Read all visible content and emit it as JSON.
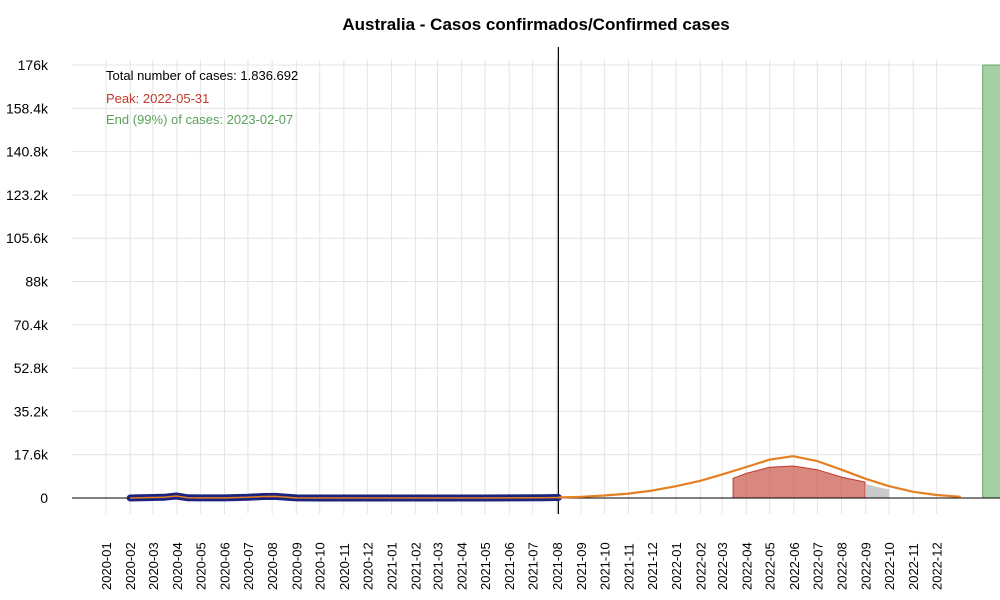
{
  "chart_data": {
    "type": "line",
    "title": "Australia - Casos confirmados/Confirmed cases",
    "xlabel": "",
    "ylabel": "",
    "ylim": [
      0,
      176000
    ],
    "yticks": [
      {
        "value": 0,
        "label": "0"
      },
      {
        "value": 17600,
        "label": "17.6k"
      },
      {
        "value": 35200,
        "label": "35.2k"
      },
      {
        "value": 52800,
        "label": "52.8k"
      },
      {
        "value": 70400,
        "label": "70.4k"
      },
      {
        "value": 88000,
        "label": "88k"
      },
      {
        "value": 105600,
        "label": "105.6k"
      },
      {
        "value": 123200,
        "label": "123.2k"
      },
      {
        "value": 140800,
        "label": "140.8k"
      },
      {
        "value": 158400,
        "label": "158.4k"
      },
      {
        "value": 176000,
        "label": "176k"
      }
    ],
    "xticks": [
      "2020-01",
      "2020-02",
      "2020-03",
      "2020-04",
      "2020-05",
      "2020-06",
      "2020-07",
      "2020-08",
      "2020-09",
      "2020-10",
      "2020-11",
      "2020-12",
      "2021-01",
      "2021-02",
      "2021-03",
      "2021-04",
      "2021-05",
      "2021-06",
      "2021-07",
      "2021-08",
      "2021-09",
      "2021-10",
      "2021-11",
      "2021-12",
      "2022-01",
      "2022-02",
      "2022-03",
      "2022-04",
      "2022-05",
      "2022-06",
      "2022-07",
      "2022-08",
      "2022-09",
      "2022-10",
      "2022-11",
      "2022-12"
    ],
    "x_domain": [
      "2020-01",
      "2023-02"
    ],
    "today_marker": "2021-08-03",
    "series": [
      {
        "kind": "observed",
        "color": "#1a237e",
        "points": [
          {
            "date": "2020-02",
            "value": 0
          },
          {
            "date": "2020-03-15",
            "value": 300
          },
          {
            "date": "2020-03-31",
            "value": 800
          },
          {
            "date": "2020-04-15",
            "value": 100
          },
          {
            "date": "2020-05",
            "value": 50
          },
          {
            "date": "2020-06",
            "value": 50
          },
          {
            "date": "2020-07",
            "value": 300
          },
          {
            "date": "2020-07-20",
            "value": 600
          },
          {
            "date": "2020-08-05",
            "value": 650
          },
          {
            "date": "2020-08-25",
            "value": 200
          },
          {
            "date": "2020-09",
            "value": 50
          },
          {
            "date": "2020-10",
            "value": 10
          },
          {
            "date": "2021-01",
            "value": 10
          },
          {
            "date": "2021-05",
            "value": 10
          },
          {
            "date": "2021-07-15",
            "value": 100
          },
          {
            "date": "2021-08-03",
            "value": 200
          }
        ]
      },
      {
        "kind": "projection",
        "color": "#e67e22",
        "points": [
          {
            "date": "2021-08-03",
            "value": 200
          },
          {
            "date": "2021-09",
            "value": 500
          },
          {
            "date": "2021-10",
            "value": 1000
          },
          {
            "date": "2021-11",
            "value": 1800
          },
          {
            "date": "2021-12",
            "value": 3000
          },
          {
            "date": "2022-01",
            "value": 4800
          },
          {
            "date": "2022-02",
            "value": 7000
          },
          {
            "date": "2022-03",
            "value": 9600
          },
          {
            "date": "2022-04",
            "value": 12600
          },
          {
            "date": "2022-05",
            "value": 15600
          },
          {
            "date": "2022-05-31",
            "value": 17000
          },
          {
            "date": "2022-07",
            "value": 15000
          },
          {
            "date": "2022-08",
            "value": 11500
          },
          {
            "date": "2022-09",
            "value": 7800
          },
          {
            "date": "2022-10",
            "value": 4800
          },
          {
            "date": "2022-11",
            "value": 2500
          },
          {
            "date": "2022-12",
            "value": 1200
          },
          {
            "date": "2023-01",
            "value": 500
          }
        ]
      },
      {
        "kind": "peak-band",
        "color": "#c0392b",
        "points": [
          {
            "date": "2022-03-15",
            "value": 8000
          },
          {
            "date": "2022-04",
            "value": 10000
          },
          {
            "date": "2022-05",
            "value": 12500
          },
          {
            "date": "2022-05-31",
            "value": 13000
          },
          {
            "date": "2022-07",
            "value": 11500
          },
          {
            "date": "2022-08",
            "value": 8500
          },
          {
            "date": "2022-08-31",
            "value": 6500
          }
        ]
      },
      {
        "kind": "grey-band",
        "color": "#bdbdbd",
        "points": [
          {
            "date": "2022-08-31",
            "value": 5800
          },
          {
            "date": "2022-09-15",
            "value": 4500
          },
          {
            "date": "2022-10",
            "value": 3500
          }
        ]
      },
      {
        "kind": "end-bar",
        "color": "#a5cfa4",
        "points": [
          {
            "date": "2023-02-07",
            "value": 176000
          }
        ]
      }
    ],
    "annotations": [
      {
        "text": "Total number of cases: 1.836.692",
        "color": "#000000"
      },
      {
        "text": "Peak: 2022-05-31",
        "color": "#c0392b"
      },
      {
        "text": "End (99%) of cases: 2023-02-07",
        "color": "#5aa05a"
      }
    ],
    "grid": true
  }
}
